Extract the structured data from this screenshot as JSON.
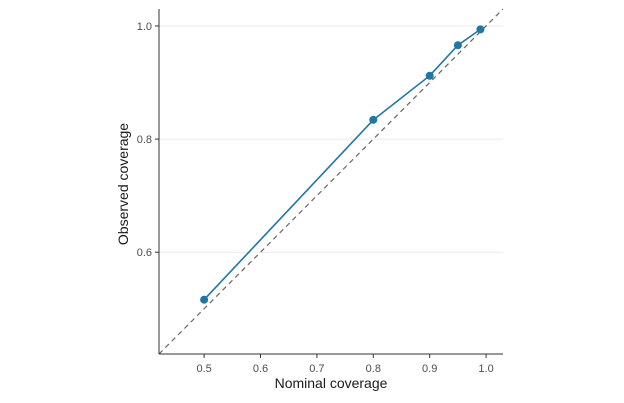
{
  "chart_data": {
    "type": "line",
    "xlabel": "Nominal coverage",
    "ylabel": "Observed coverage",
    "xlim": [
      0.42,
      1.03
    ],
    "ylim": [
      0.42,
      1.03
    ],
    "x_ticks": [
      0.5,
      0.6,
      0.7,
      0.8,
      0.9,
      1.0
    ],
    "x_tick_labels": [
      "0.5",
      "0.6",
      "0.7",
      "0.8",
      "0.9",
      "1.0"
    ],
    "y_ticks": [
      0.6,
      0.8,
      1.0
    ],
    "y_tick_labels": [
      "0.6",
      "0.8",
      "1.0"
    ],
    "grid": "horizontal-major",
    "reference_line": "y = x (dashed)",
    "series": [
      {
        "x": [
          0.5,
          0.8,
          0.9,
          0.95,
          0.99
        ],
        "y": [
          0.516,
          0.834,
          0.912,
          0.966,
          0.994
        ],
        "color": "#1f77a4"
      }
    ],
    "colors": {
      "grid": "#ebebeb",
      "axis": "#333333",
      "reference": "#666666"
    }
  }
}
